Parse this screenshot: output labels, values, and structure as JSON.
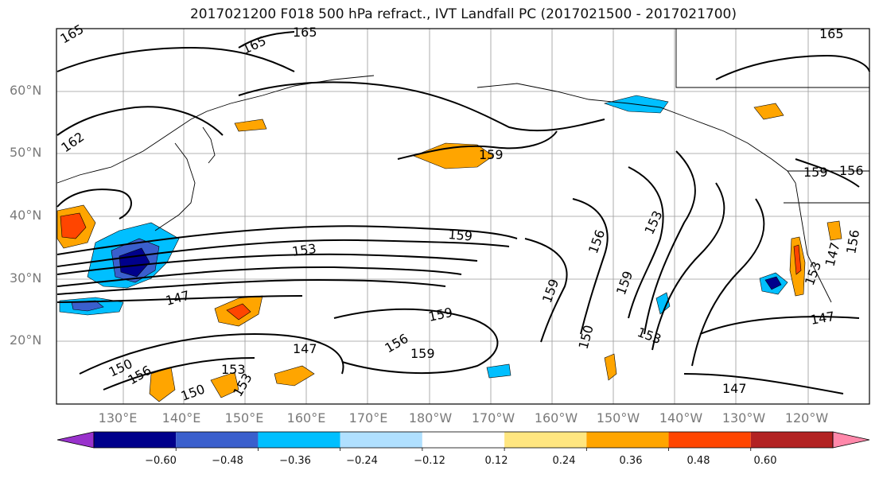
{
  "title": "2017021200 F018 500 hPa refract., IVT Landfall PC (2017021500 - 2017021700)",
  "lat_labels": [
    "60°N",
    "50°N",
    "40°N",
    "30°N",
    "20°N"
  ],
  "lon_labels": [
    "130°E",
    "140°E",
    "150°E",
    "160°E",
    "170°E",
    "180°W",
    "170°W",
    "160°W",
    "150°W",
    "140°W",
    "130°W",
    "120°W"
  ],
  "contour_labels": [
    "165",
    "165",
    "165",
    "165",
    "162",
    "159",
    "159",
    "159",
    "159",
    "159",
    "159",
    "159",
    "156",
    "156",
    "156",
    "156",
    "156",
    "153",
    "153",
    "153",
    "153",
    "153",
    "153",
    "150",
    "150",
    "150",
    "147",
    "147",
    "147",
    "147",
    "147"
  ],
  "colorbar": {
    "ticks": [
      "−0.60",
      "−0.48",
      "−0.36",
      "−0.24",
      "−0.12",
      "0.12",
      "0.24",
      "0.36",
      "0.48",
      "0.60"
    ],
    "colors": [
      "#9932cc",
      "#00008b",
      "#3a5fcd",
      "#00bfff",
      "#b0e0ff",
      "#ffffff",
      "#ffe680",
      "#ffa500",
      "#ff4500",
      "#b22222",
      "#ff88aa"
    ]
  }
}
